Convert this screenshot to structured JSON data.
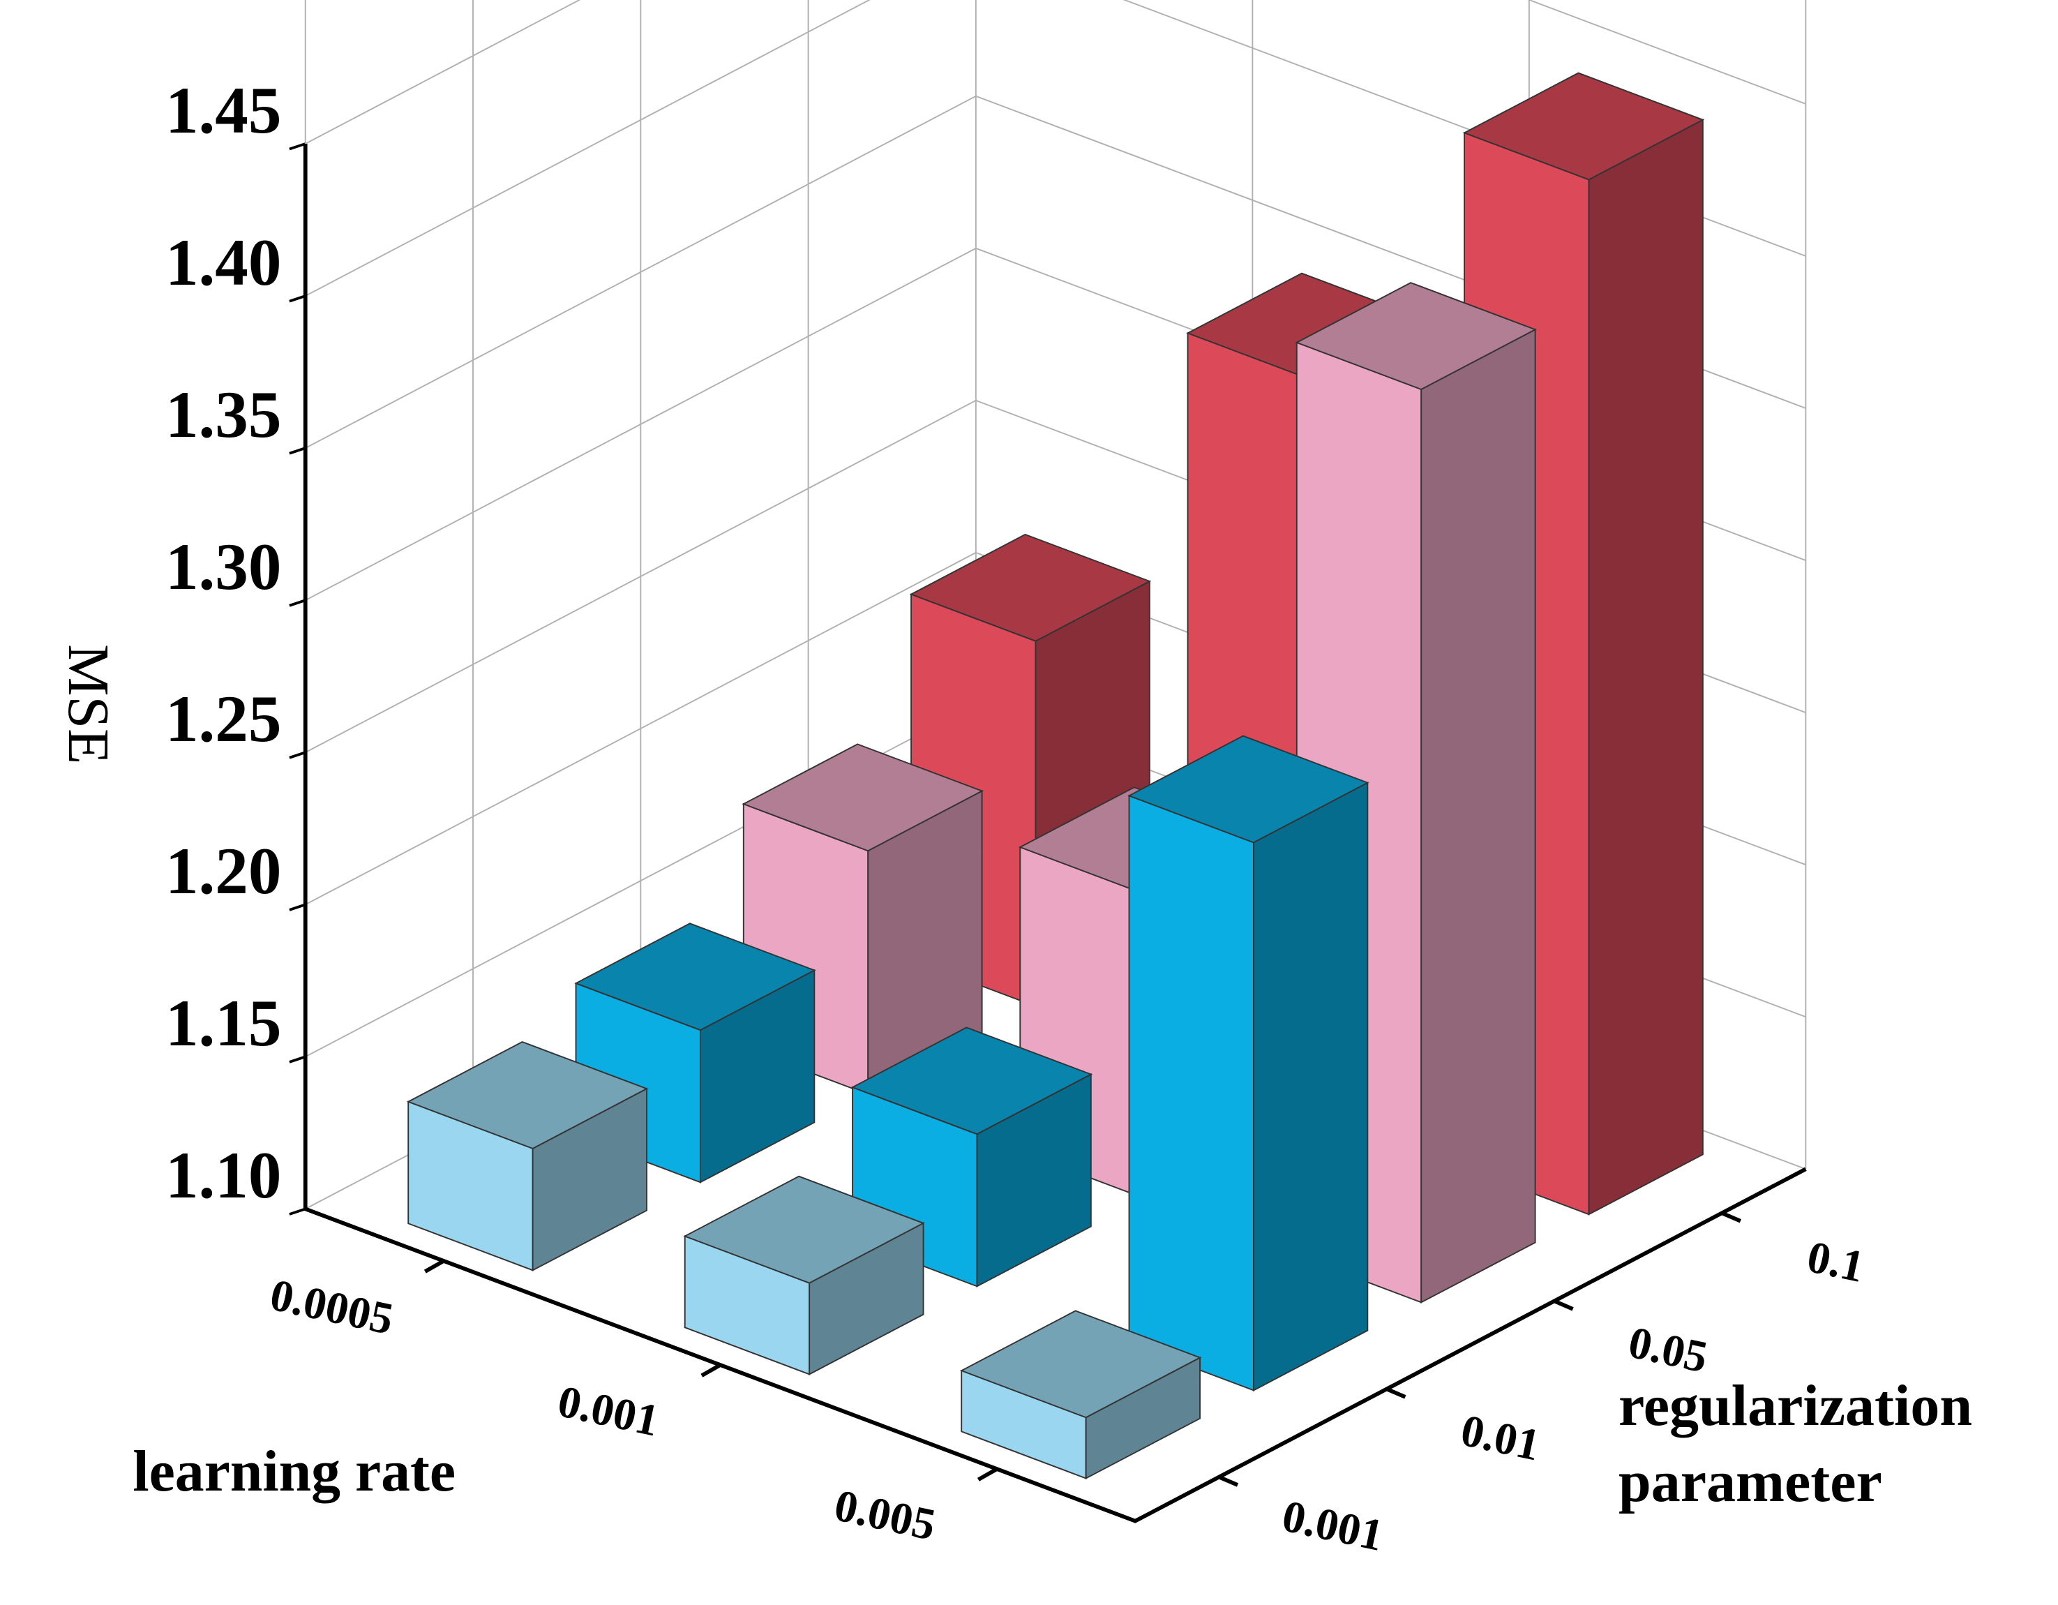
{
  "chart_data": {
    "type": "bar3d",
    "y_label": "MSE",
    "x_label": "learning rate",
    "z_label": "regularization parameter",
    "categories": [
      "0.0005",
      "0.001",
      "0.005"
    ],
    "depth_categories": [
      "0.001",
      "0.01",
      "0.05",
      "0.1"
    ],
    "series": [
      {
        "name": "0.001",
        "color": "#9ad6ef",
        "values": [
          1.14,
          1.13,
          1.12
        ]
      },
      {
        "name": "0.01",
        "color": "#0aaee3",
        "values": [
          1.15,
          1.15,
          1.28
        ]
      },
      {
        "name": "0.05",
        "color": "#eaa6c3",
        "values": [
          1.18,
          1.2,
          1.4
        ]
      },
      {
        "name": "0.1",
        "color": "#dc4a5a",
        "values": [
          1.22,
          1.34,
          1.44
        ]
      }
    ],
    "ylim": [
      1.1,
      1.45
    ],
    "yticks": [
      {
        "value": 1.1,
        "label": "1.10"
      },
      1.15,
      {
        "value": 1.2,
        "label": "1.20"
      },
      1.25,
      {
        "value": 1.3,
        "label": "1.30"
      },
      1.35,
      {
        "value": 1.4,
        "label": "1.40"
      },
      1.45
    ],
    "grid": true
  }
}
